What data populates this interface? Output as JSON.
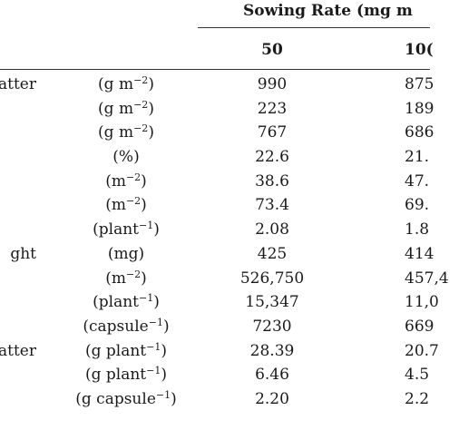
{
  "header": {
    "group_title": "Sowing Rate (mg m",
    "col_50": "50",
    "col_100": "10("
  },
  "rows": [
    {
      "param": "atter",
      "unit": "(g m",
      "exp": "−2",
      "close": ")",
      "v50": "990",
      "v100": "875"
    },
    {
      "param": "",
      "unit": "(g m",
      "exp": "−2",
      "close": ")",
      "v50": "223",
      "v100": "189"
    },
    {
      "param": "",
      "unit": "(g m",
      "exp": "−2",
      "close": ")",
      "v50": "767",
      "v100": "686"
    },
    {
      "param": "",
      "unit": "(%)",
      "exp": "",
      "close": "",
      "v50": "22.6",
      "v100": "21."
    },
    {
      "param": "",
      "unit": "(m",
      "exp": "−2",
      "close": ")",
      "v50": "38.6",
      "v100": "47."
    },
    {
      "param": "",
      "unit": "(m",
      "exp": "−2",
      "close": ")",
      "v50": "73.4",
      "v100": "69."
    },
    {
      "param": "",
      "unit": "(plant",
      "exp": "−1",
      "close": ")",
      "v50": "2.08",
      "v100": "1.8"
    },
    {
      "param": "ght",
      "unit": "(mg)",
      "exp": "",
      "close": "",
      "v50": "425",
      "v100": "414"
    },
    {
      "param": "",
      "unit": "(m",
      "exp": "−2",
      "close": ")",
      "v50": "526,750",
      "v100": "457,4"
    },
    {
      "param": "",
      "unit": "(plant",
      "exp": "−1",
      "close": ")",
      "v50": "15,347",
      "v100": "11,0"
    },
    {
      "param": "",
      "unit": "(capsule",
      "exp": "−1",
      "close": ")",
      "v50": "7230",
      "v100": "669"
    },
    {
      "param": "atter",
      "unit": "(g plant",
      "exp": "−1",
      "close": ")",
      "v50": "28.39",
      "v100": "20.7"
    },
    {
      "param": "",
      "unit": "(g plant",
      "exp": "−1",
      "close": ")",
      "v50": "6.46",
      "v100": "4.5"
    },
    {
      "param": "",
      "unit": "(g capsule",
      "exp": "−1",
      "close": ")",
      "v50": "2.20",
      "v100": "2.2"
    }
  ]
}
